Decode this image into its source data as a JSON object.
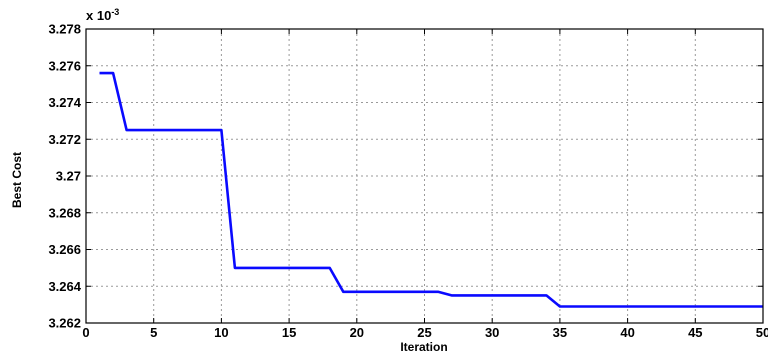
{
  "chart_data": {
    "type": "line",
    "xlabel": "Iteration",
    "ylabel": "Best Cost",
    "y_multiplier_label": "x 10",
    "y_multiplier_exponent": "-3",
    "xlim": [
      0,
      50
    ],
    "ylim": [
      3.262,
      3.278
    ],
    "x_ticks": [
      0,
      5,
      10,
      15,
      20,
      25,
      30,
      35,
      40,
      45,
      50
    ],
    "y_ticks": [
      3.262,
      3.264,
      3.266,
      3.268,
      3.27,
      3.272,
      3.274,
      3.276,
      3.278
    ],
    "x_tick_labels": [
      "0",
      "5",
      "10",
      "15",
      "20",
      "25",
      "30",
      "35",
      "40",
      "45",
      "50"
    ],
    "y_tick_labels": [
      "3.262",
      "3.264",
      "3.266",
      "3.268",
      "3.27",
      "3.272",
      "3.274",
      "3.276",
      "3.278"
    ],
    "grid": true,
    "series": [
      {
        "color": "#0a0aff",
        "x": [
          1,
          2,
          3,
          10,
          11,
          18,
          19,
          26,
          27,
          34,
          35,
          50
        ],
        "y": [
          3.2756,
          3.2756,
          3.2725,
          3.2725,
          3.265,
          3.265,
          3.2637,
          3.2637,
          3.2635,
          3.2635,
          3.2629,
          3.2629
        ]
      }
    ]
  }
}
